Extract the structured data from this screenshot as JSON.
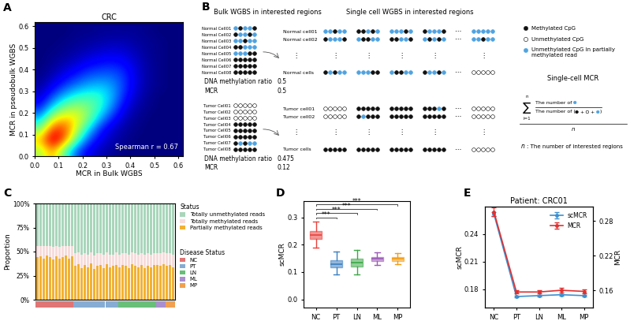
{
  "chart_data": [
    {
      "type": "density",
      "panel_label": "A",
      "title": "CRC",
      "x_label": "MCR in Bulk WGBS",
      "y_label": "MCR in pseudobulk WGBS",
      "xlim": [
        0,
        0.62
      ],
      "ylim": [
        0,
        0.62
      ],
      "xticks": [
        0.0,
        0.1,
        0.2,
        0.3,
        0.4,
        0.5,
        0.6
      ],
      "yticks": [
        0.0,
        0.1,
        0.2,
        0.3,
        0.4,
        0.5,
        0.6
      ],
      "annotation": "Spearman r = 0.67",
      "x_bins": [
        0.0,
        0.05,
        0.1,
        0.15,
        0.2,
        0.25,
        0.3,
        0.35,
        0.4,
        0.45,
        0.5,
        0.55,
        0.6
      ],
      "y_bins": [
        0.0,
        0.05,
        0.1,
        0.15,
        0.2,
        0.25,
        0.3,
        0.35,
        0.4,
        0.45,
        0.5,
        0.55,
        0.6
      ],
      "color_range": [
        0,
        1
      ],
      "cells": [
        [
          0.55,
          0.75,
          0.45,
          0.2,
          0.1,
          0.05,
          0.02,
          0,
          0,
          0,
          0,
          0
        ],
        [
          0.7,
          1.0,
          0.8,
          0.45,
          0.2,
          0.1,
          0.05,
          0.02,
          0,
          0,
          0,
          0
        ],
        [
          0.5,
          0.85,
          0.85,
          0.6,
          0.35,
          0.15,
          0.07,
          0.03,
          0.01,
          0,
          0,
          0
        ],
        [
          0.3,
          0.6,
          0.7,
          0.65,
          0.5,
          0.3,
          0.15,
          0.06,
          0.02,
          0,
          0,
          0
        ],
        [
          0.15,
          0.35,
          0.5,
          0.55,
          0.5,
          0.4,
          0.25,
          0.1,
          0.04,
          0.01,
          0,
          0
        ],
        [
          0.07,
          0.2,
          0.32,
          0.4,
          0.42,
          0.4,
          0.3,
          0.15,
          0.06,
          0.02,
          0,
          0
        ],
        [
          0.03,
          0.1,
          0.18,
          0.25,
          0.3,
          0.32,
          0.28,
          0.18,
          0.08,
          0.03,
          0.01,
          0
        ],
        [
          0.01,
          0.05,
          0.1,
          0.15,
          0.2,
          0.22,
          0.22,
          0.17,
          0.08,
          0.03,
          0.01,
          0
        ],
        [
          0,
          0.02,
          0.05,
          0.08,
          0.12,
          0.14,
          0.15,
          0.13,
          0.07,
          0.03,
          0.01,
          0
        ],
        [
          0,
          0.01,
          0.02,
          0.04,
          0.06,
          0.08,
          0.09,
          0.08,
          0.05,
          0.02,
          0.01,
          0
        ],
        [
          0,
          0,
          0.01,
          0.02,
          0.03,
          0.04,
          0.05,
          0.05,
          0.03,
          0.02,
          0.01,
          0
        ],
        [
          0,
          0,
          0,
          0.01,
          0.01,
          0.02,
          0.02,
          0.02,
          0.02,
          0.01,
          0,
          0
        ]
      ]
    },
    {
      "type": "bar",
      "panel_label": "C",
      "stacked": true,
      "y_label": "Proportion",
      "categories": [
        null,
        null,
        null,
        null,
        null,
        null,
        null,
        null,
        null,
        null,
        null,
        null,
        null,
        null,
        null,
        null,
        null,
        null,
        null,
        null,
        null,
        null,
        null,
        null,
        null,
        null,
        null,
        null,
        null,
        null,
        null,
        null,
        null,
        null,
        null,
        null,
        null,
        null,
        null,
        null,
        null,
        null,
        null,
        null
      ],
      "ylim": [
        0,
        100
      ],
      "yticks": [
        {
          "value": 0,
          "label": "0%"
        },
        {
          "value": 25,
          "label": "25%"
        },
        {
          "value": 50,
          "label": "50%"
        },
        {
          "value": 75,
          "label": "75%"
        },
        {
          "value": 100,
          "label": "100%"
        }
      ],
      "tick_labels": "y",
      "legend": "right",
      "legend_title": "Status",
      "series": [
        {
          "name": "Partially methylated reads",
          "color": "#f2b134",
          "values": [
            44,
            45,
            43,
            46,
            44,
            42,
            45,
            43,
            44,
            46,
            43,
            45,
            35,
            37,
            33,
            36,
            34,
            38,
            32,
            35,
            36,
            33,
            37,
            34,
            35,
            36,
            34,
            36,
            35,
            33,
            37,
            35,
            34,
            36,
            33,
            35,
            34,
            36,
            36,
            35,
            37,
            35,
            36,
            34
          ]
        },
        {
          "name": "Totally methylated reads",
          "color": "#f7dcdc",
          "values": [
            12,
            11,
            13,
            10,
            12,
            13,
            11,
            12,
            12,
            10,
            13,
            11,
            13,
            12,
            14,
            12,
            13,
            11,
            14,
            13,
            12,
            14,
            12,
            13,
            12,
            13,
            13,
            12,
            13,
            14,
            12,
            13,
            13,
            12,
            14,
            13,
            13,
            12,
            12,
            13,
            12,
            13,
            12,
            13
          ]
        },
        {
          "name": "Totally unmethylated reads",
          "color": "#a9d6bb",
          "values": [
            44,
            44,
            44,
            44,
            44,
            45,
            44,
            45,
            44,
            44,
            44,
            44,
            52,
            51,
            53,
            52,
            53,
            51,
            54,
            52,
            52,
            53,
            51,
            53,
            53,
            51,
            53,
            52,
            52,
            53,
            51,
            52,
            53,
            52,
            53,
            52,
            53,
            52,
            52,
            52,
            51,
            52,
            52,
            53
          ]
        }
      ],
      "groups": {
        "title": "Disease Status",
        "names": [
          "NC",
          "PT",
          "LN",
          "ML",
          "MP"
        ],
        "colors": [
          "#e07575",
          "#86acd3",
          "#67bf78",
          "#a98fcf",
          "#f0a050"
        ],
        "bar_groups": [
          "NC",
          "NC",
          "NC",
          "NC",
          "NC",
          "NC",
          "NC",
          "NC",
          "NC",
          "NC",
          "NC",
          "NC",
          "PT",
          "PT",
          "PT",
          "PT",
          "PT",
          "PT",
          "PT",
          "PT",
          "PT",
          "PT",
          "PT",
          "PT",
          "PT",
          "PT",
          "LN",
          "LN",
          "LN",
          "LN",
          "LN",
          "LN",
          "LN",
          "LN",
          "LN",
          "LN",
          "LN",
          "LN",
          "ML",
          "ML",
          "ML",
          "MP",
          "MP",
          "MP"
        ]
      }
    },
    {
      "type": "box",
      "panel_label": "D",
      "y_label": "scMCR",
      "categories": [
        "NC",
        "PT",
        "LN",
        "ML",
        "MP"
      ],
      "colors": [
        "#e8413c",
        "#3c7fc0",
        "#3aa845",
        "#9b59b6",
        "#f39c12"
      ],
      "medians": [
        0.235,
        0.13,
        0.135,
        0.148,
        0.148
      ],
      "q1": [
        0.222,
        0.118,
        0.12,
        0.14,
        0.14
      ],
      "q3": [
        0.25,
        0.142,
        0.148,
        0.156,
        0.155
      ],
      "whisker_low": [
        0.19,
        0.09,
        0.09,
        0.125,
        0.128
      ],
      "whisker_high": [
        0.285,
        0.175,
        0.18,
        0.172,
        0.168
      ],
      "ylim": [
        -0.03,
        0.36
      ],
      "yticks": [
        0.0,
        0.1,
        0.2,
        0.3
      ],
      "comparisons": [
        {
          "from": "NC",
          "to": "PT",
          "label": "***"
        },
        {
          "from": "NC",
          "to": "LN",
          "label": "***"
        },
        {
          "from": "NC",
          "to": "ML",
          "label": "***"
        },
        {
          "from": "NC",
          "to": "MP",
          "label": "***"
        }
      ]
    },
    {
      "type": "line",
      "panel_label": "E",
      "title": "Patient: CRC01",
      "categories": [
        "NC",
        "PT",
        "LN",
        "ML",
        "MP"
      ],
      "y_label": "scMCR",
      "y2_label": "MCR",
      "ylim": [
        0.16,
        0.27
      ],
      "yticks": [
        0.18,
        0.21,
        0.24
      ],
      "y2lim": [
        0.13,
        0.305
      ],
      "y2ticks": [
        0.16,
        0.22,
        0.28
      ],
      "legend": "upper right",
      "series": [
        {
          "name": "scMCR",
          "color": "#3b8fd0",
          "marker": "o",
          "values": [
            0.262,
            0.172,
            0.173,
            0.174,
            0.173
          ],
          "errors": [
            0.002,
            0.001,
            0.001,
            0.001,
            0.001
          ]
        },
        {
          "name": "MCR",
          "color": "#e03030",
          "marker": "o",
          "axis": "y2",
          "values": [
            0.296,
            0.157,
            0.157,
            0.16,
            0.158
          ],
          "errors": [
            0.008,
            0.003,
            0.003,
            0.004,
            0.003
          ]
        }
      ]
    }
  ],
  "diagram": {
    "panel_label": "B",
    "bulk_title": "Bulk WGBS in interested regions",
    "single_cell_title": "Single cell WGBS in interested regions",
    "groups": [
      {
        "bulk_cells": [
          "Normal Cell01",
          "Normal Cell02",
          "Normal Cell03",
          "Normal Cell04",
          "Normal Cell05",
          "Normal Cell06",
          "Normal Cell07",
          "Normal Cell08"
        ],
        "single_cells": [
          "Normal cell01",
          "Normal cell02",
          "Normal cells"
        ],
        "ratio_label": "DNA methylation ratio",
        "ratio": 0.5,
        "mcr_label": "MCR",
        "mcr": 0.5
      },
      {
        "bulk_cells": [
          "Tumor Cell01",
          "Tumor Cell02",
          "Tumor Cell03",
          "Tumor Cell04",
          "Tumor Cell05",
          "Tumor Cell06",
          "Tumor Cell07",
          "Tumor Cell08"
        ],
        "single_cells": [
          "Tumor cell01",
          "Tumor cell02",
          "Tumor cells"
        ],
        "ratio_label": "DNA methylation ratio",
        "ratio": 0.475,
        "mcr_label": "MCR",
        "mcr": 0.12
      }
    ],
    "vertical_dots": "⋮",
    "horizontal_dots": "⋯",
    "legend": [
      {
        "label": "Methylated CpG",
        "color": "#111111"
      },
      {
        "label": "Unmethylated CpG",
        "color": "#ffffff"
      },
      {
        "label": "Unmethylated CpG in partially methylated read",
        "color": "#4fa3e0"
      }
    ],
    "formula": {
      "title": "Single-cell MCR",
      "sum": "∑",
      "upper": "n",
      "lower": "i=1",
      "numerator": "The number of ",
      "denominator_open": "The number of (",
      "plus": " + ",
      "close": ")",
      "divisor": "n"
    },
    "note": {
      "symbol": "n",
      "text": ": The number of interested regions"
    }
  }
}
